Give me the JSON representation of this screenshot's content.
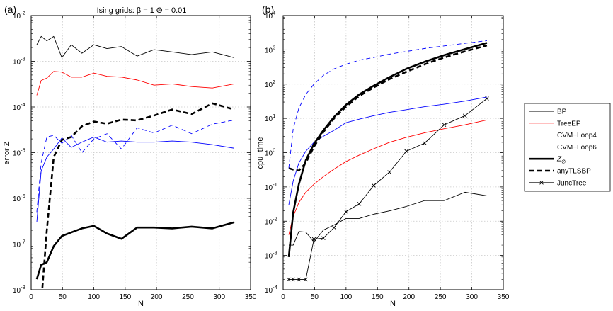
{
  "panels": [
    {
      "label": "(a)",
      "title": "Ising grids: β = 1   Θ = 0.01"
    },
    {
      "label": "(b)",
      "title": ""
    }
  ],
  "chart_data": [
    {
      "type": "line",
      "title": "Ising grids: β = 1   Θ = 0.01",
      "xlabel": "N",
      "ylabel": "error Z",
      "yscale": "log",
      "xlim": [
        0,
        350
      ],
      "ylim": [
        1e-08,
        0.01
      ],
      "xticks": [
        0,
        50,
        100,
        150,
        200,
        250,
        300,
        350
      ],
      "yticks": [
        {
          "value": 1e-08,
          "base": "10",
          "exp": "-8"
        },
        {
          "value": 1e-07,
          "base": "10",
          "exp": "-7"
        },
        {
          "value": 1e-06,
          "base": "10",
          "exp": "-6"
        },
        {
          "value": 1e-05,
          "base": "10",
          "exp": "-5"
        },
        {
          "value": 0.0001,
          "base": "10",
          "exp": "-4"
        },
        {
          "value": 0.001,
          "base": "10",
          "exp": "-3"
        },
        {
          "value": 0.01,
          "base": "10",
          "exp": "-2"
        }
      ],
      "grid": true,
      "series": [
        {
          "name": "BP",
          "color": "#000000",
          "style": "solid-thin",
          "x": [
            9,
            16,
            25,
            36,
            49,
            64,
            81,
            100,
            121,
            144,
            169,
            196,
            225,
            256,
            289,
            324
          ],
          "y": [
            0.0023,
            0.0035,
            0.0028,
            0.0035,
            0.0012,
            0.0023,
            0.0015,
            0.0023,
            0.0019,
            0.0021,
            0.0013,
            0.0018,
            0.0016,
            0.0014,
            0.0016,
            0.0012
          ]
        },
        {
          "name": "TreeEP",
          "color": "#ff0000",
          "style": "solid-thin",
          "x": [
            9,
            16,
            25,
            36,
            49,
            64,
            81,
            100,
            121,
            144,
            169,
            196,
            225,
            256,
            289,
            324
          ],
          "y": [
            0.00018,
            0.00038,
            0.00043,
            0.0006,
            0.00058,
            0.00045,
            0.00045,
            0.00055,
            0.00047,
            0.00045,
            0.00039,
            0.0003,
            0.00032,
            0.00028,
            0.00026,
            0.00032
          ]
        },
        {
          "name": "CVM−Loop4",
          "color": "#0000ff",
          "style": "solid-thin",
          "x": [
            9,
            16,
            25,
            36,
            49,
            64,
            81,
            100,
            121,
            144,
            169,
            196,
            225,
            256,
            289,
            324
          ],
          "y": [
            3e-07,
            4e-06,
            8e-06,
            1.2e-05,
            2.1e-05,
            1.3e-05,
            1.7e-05,
            2.2e-05,
            1.7e-05,
            1.8e-05,
            1.7e-05,
            1.7e-05,
            1.8e-05,
            1.7e-05,
            1.5e-05,
            1.25e-05
          ]
        },
        {
          "name": "CVM−Loop6",
          "color": "#0000ff",
          "style": "dashed-thin",
          "x": [
            9,
            16,
            25,
            36,
            49,
            64,
            81,
            100,
            121,
            144,
            169,
            196,
            225,
            256,
            289,
            324
          ],
          "y": [
            5e-07,
            6e-06,
            2.2e-05,
            2.4e-05,
            1.6e-05,
            2.4e-05,
            1e-05,
            2e-05,
            2.6e-05,
            1.2e-05,
            3.5e-05,
            2.7e-05,
            4e-05,
            2.6e-05,
            4.2e-05,
            5.2e-05
          ]
        },
        {
          "name": "Z_∅",
          "color": "#000000",
          "style": "solid-thick",
          "x": [
            9,
            16,
            25,
            36,
            49,
            64,
            81,
            100,
            121,
            144,
            169,
            196,
            225,
            256,
            289,
            324
          ],
          "y": [
            1.7e-08,
            3.5e-08,
            4e-08,
            9e-08,
            1.5e-07,
            1.8e-07,
            2.2e-07,
            2.5e-07,
            1.7e-07,
            1.3e-07,
            2.3e-07,
            2.3e-07,
            2.2e-07,
            2.4e-07,
            2.2e-07,
            3e-07
          ]
        },
        {
          "name": "anyTLSBP",
          "color": "#000000",
          "style": "dashed-thick",
          "x": [
            16,
            25,
            36,
            49,
            64,
            81,
            100,
            121,
            144,
            169,
            196,
            225,
            256,
            289,
            324
          ],
          "y": [
            5e-09,
            2e-07,
            8e-06,
            1.9e-05,
            2.2e-05,
            3.8e-05,
            4.8e-05,
            4.3e-05,
            5.3e-05,
            5.1e-05,
            6.5e-05,
            8.8e-05,
            7e-05,
            0.00012,
            8.8e-05
          ]
        }
      ]
    },
    {
      "type": "line",
      "title": "",
      "xlabel": "N",
      "ylabel": "cpu−time",
      "yscale": "log",
      "xlim": [
        0,
        350
      ],
      "ylim": [
        0.0001,
        10000.0
      ],
      "xticks": [
        0,
        50,
        100,
        150,
        200,
        250,
        300,
        350
      ],
      "yticks": [
        {
          "value": 0.0001,
          "base": "10",
          "exp": "-4"
        },
        {
          "value": 0.001,
          "base": "10",
          "exp": "-3"
        },
        {
          "value": 0.01,
          "base": "10",
          "exp": "-2"
        },
        {
          "value": 0.1,
          "base": "10",
          "exp": "-1"
        },
        {
          "value": 1.0,
          "base": "10",
          "exp": "0"
        },
        {
          "value": 10.0,
          "base": "10",
          "exp": "1"
        },
        {
          "value": 100.0,
          "base": "10",
          "exp": "2"
        },
        {
          "value": 1000.0,
          "base": "10",
          "exp": "3"
        },
        {
          "value": 10000.0,
          "base": "10",
          "exp": "4"
        }
      ],
      "grid": true,
      "legend": {
        "placement": "outside-right",
        "entries": [
          "BP",
          "TreeEP",
          "CVM−Loop4",
          "CVM−Loop6",
          "Z_∅",
          "anyTLSBP",
          "JuncTree"
        ]
      },
      "series": [
        {
          "name": "BP",
          "color": "#000000",
          "style": "solid-thin",
          "x": [
            9,
            16,
            25,
            36,
            49,
            64,
            81,
            100,
            121,
            144,
            169,
            196,
            225,
            256,
            289,
            324
          ],
          "y": [
            0.002,
            0.002,
            0.005,
            0.0048,
            0.0025,
            0.0055,
            0.0078,
            0.012,
            0.012,
            0.016,
            0.02,
            0.027,
            0.04,
            0.04,
            0.07,
            0.055
          ]
        },
        {
          "name": "TreeEP",
          "color": "#ff0000",
          "style": "solid-thin",
          "x": [
            9,
            16,
            25,
            36,
            49,
            64,
            81,
            100,
            121,
            144,
            169,
            196,
            225,
            256,
            289,
            324
          ],
          "y": [
            0.004,
            0.014,
            0.035,
            0.07,
            0.12,
            0.2,
            0.33,
            0.55,
            0.85,
            1.3,
            2,
            2.8,
            3.8,
            5,
            6.5,
            9
          ]
        },
        {
          "name": "CVM−Loop4",
          "color": "#0000ff",
          "style": "solid-thin",
          "x": [
            9,
            16,
            25,
            36,
            49,
            64,
            81,
            100,
            121,
            144,
            169,
            196,
            225,
            256,
            289,
            324
          ],
          "y": [
            0.03,
            0.15,
            0.5,
            1.1,
            2,
            3,
            4.5,
            7.5,
            9.5,
            12,
            15,
            18,
            22,
            26,
            32,
            42
          ]
        },
        {
          "name": "CVM−Loop6",
          "color": "#0000ff",
          "style": "dashed-thin",
          "x": [
            9,
            16,
            25,
            36,
            49,
            64,
            81,
            100,
            121,
            144,
            169,
            196,
            225,
            256,
            289,
            324
          ],
          "y": [
            0.35,
            5,
            20,
            50,
            100,
            180,
            280,
            380,
            500,
            600,
            750,
            900,
            1100,
            1300,
            1550,
            1850
          ]
        },
        {
          "name": "Z_∅",
          "color": "#000000",
          "style": "solid-thick",
          "x": [
            9,
            16,
            25,
            36,
            49,
            64,
            81,
            100,
            121,
            144,
            169,
            196,
            225,
            256,
            289,
            324
          ],
          "y": [
            0.0009,
            0.018,
            0.12,
            0.6,
            1.8,
            4.5,
            11,
            25,
            50,
            90,
            160,
            280,
            450,
            700,
            1050,
            1600
          ]
        },
        {
          "name": "anyTLSBP",
          "color": "#000000",
          "style": "dashed-thick",
          "x": [
            9,
            16,
            25,
            36,
            49,
            64,
            81,
            100,
            121,
            144,
            169,
            196,
            225,
            256,
            289,
            324
          ],
          "y": [
            0.35,
            0.32,
            0.3,
            0.5,
            1.5,
            4,
            10,
            22,
            45,
            80,
            140,
            230,
            380,
            600,
            900,
            1350
          ]
        },
        {
          "name": "JuncTree",
          "color": "#000000",
          "style": "solid-thin-x",
          "x": [
            9,
            16,
            25,
            36,
            49,
            64,
            81,
            100,
            121,
            144,
            169,
            196,
            225,
            256,
            289,
            324
          ],
          "y": [
            0.0002,
            0.0002,
            0.0002,
            0.0002,
            0.003,
            0.0032,
            0.0065,
            0.019,
            0.032,
            0.11,
            0.27,
            1.1,
            1.9,
            6.5,
            12,
            38
          ]
        }
      ]
    }
  ]
}
